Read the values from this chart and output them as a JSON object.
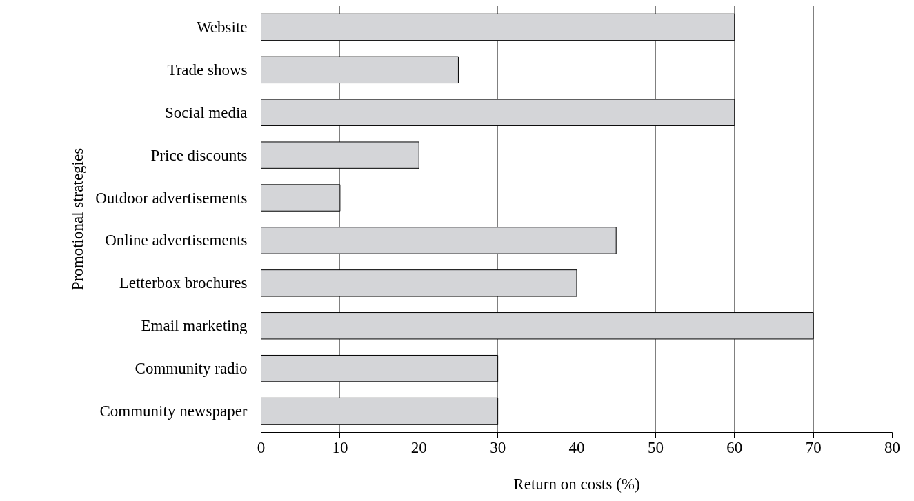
{
  "chart_data": {
    "type": "bar",
    "orientation": "horizontal",
    "xlabel": "Return on costs (%)",
    "ylabel": "Promotional strategies",
    "categories": [
      "Website",
      "Trade shows",
      "Social media",
      "Price discounts",
      "Outdoor advertisements",
      "Online advertisements",
      "Letterbox brochures",
      "Email marketing",
      "Community radio",
      "Community newspaper"
    ],
    "values": [
      60,
      25,
      60,
      20,
      10,
      45,
      40,
      70,
      30,
      30
    ],
    "color": "#d4d5d8",
    "xlim": [
      0,
      80
    ],
    "xticks": [
      0,
      10,
      20,
      30,
      40,
      50,
      60,
      70,
      80
    ],
    "grid": "x"
  }
}
